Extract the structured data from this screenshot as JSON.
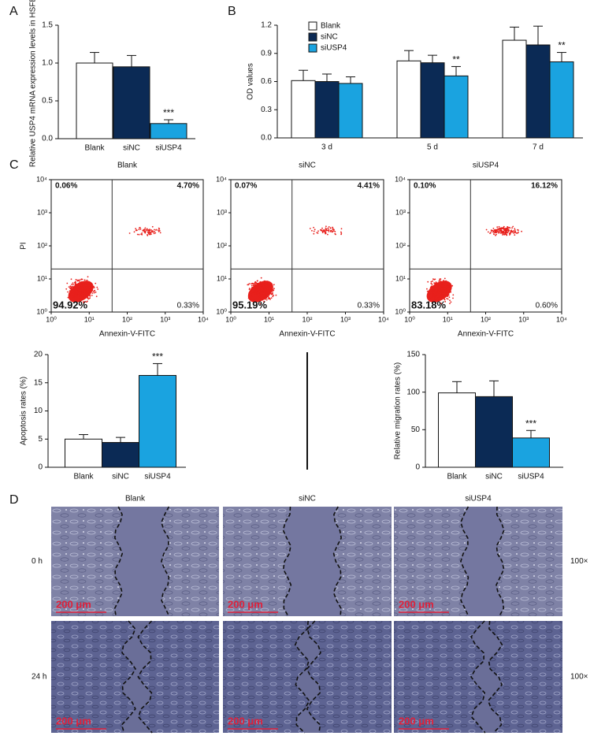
{
  "chart_data": [
    {
      "type": "bar",
      "panel": "A",
      "ylabel": "Relative USP4 mRNA expression levels in HSFB",
      "categories": [
        "Blank",
        "siNC",
        "siUSP4"
      ],
      "values": [
        1.0,
        0.95,
        0.2
      ],
      "errors": [
        0.14,
        0.15,
        0.05
      ],
      "colors": [
        "#ffffff",
        "#0b2a55",
        "#1aa3e0"
      ],
      "annotations": [
        null,
        null,
        "***"
      ],
      "ylim": [
        0,
        1.5
      ],
      "yticks": [
        {
          "value": 0,
          "label": "0.0"
        },
        0.5,
        {
          "value": 1,
          "label": "1.0"
        },
        1.5
      ]
    },
    {
      "type": "bar",
      "panel": "B",
      "ylabel": "OD values",
      "categories": [
        "3 d",
        "5 d",
        "7 d"
      ],
      "series": [
        {
          "name": "Blank",
          "color": "#ffffff",
          "values": [
            0.61,
            0.82,
            1.04
          ],
          "errors": [
            0.11,
            0.11,
            0.14
          ]
        },
        {
          "name": "siNC",
          "color": "#0b2a55",
          "values": [
            0.6,
            0.8,
            0.99
          ],
          "errors": [
            0.08,
            0.08,
            0.2
          ]
        },
        {
          "name": "siUSP4",
          "color": "#1aa3e0",
          "values": [
            0.58,
            0.66,
            0.81
          ],
          "errors": [
            0.07,
            0.1,
            0.1
          ],
          "annotations": [
            null,
            "**",
            "**"
          ]
        }
      ],
      "ylim": [
        0,
        1.2
      ],
      "yticks": [
        {
          "value": 0,
          "label": "0.0"
        },
        0.3,
        0.6,
        0.9,
        1.2
      ],
      "legend": "upper left"
    },
    {
      "type": "scatter",
      "panel": "C",
      "title": "Blank",
      "xlabel": "Annexin-V-FITC",
      "ylabel": "PI",
      "xscale": "log",
      "yscale": "log",
      "xlim": [
        1,
        10000
      ],
      "ylim": [
        1,
        10000
      ],
      "xticks": [
        {
          "value": 1,
          "label": "10⁰"
        },
        {
          "value": 10,
          "label": "10¹"
        },
        {
          "value": 100,
          "label": "10²"
        },
        {
          "value": 1000,
          "label": "10³"
        },
        {
          "value": 10000,
          "label": "10⁴"
        }
      ],
      "yticks": [
        {
          "value": 1,
          "label": "10⁰"
        },
        {
          "value": 10,
          "label": "10¹"
        },
        {
          "value": 100,
          "label": "10²"
        },
        {
          "value": 1000,
          "label": "10³"
        },
        {
          "value": 10000,
          "label": "10⁴"
        }
      ],
      "quadrant_gate": [
        40,
        20
      ],
      "color": "#e8201c",
      "quadrants": {
        "upper_left": "0.06%",
        "upper_right": "4.70%",
        "lower_left": "94.92%",
        "lower_right": "0.33%"
      }
    },
    {
      "type": "scatter",
      "title": "siNC",
      "xlabel": "Annexin-V-FITC",
      "xscale": "log",
      "yscale": "log",
      "xlim": [
        1,
        10000
      ],
      "ylim": [
        1,
        10000
      ],
      "xticks": [
        {
          "value": 1,
          "label": "10⁰"
        },
        {
          "value": 10,
          "label": "10¹"
        },
        {
          "value": 100,
          "label": "10²"
        },
        {
          "value": 1000,
          "label": "10³"
        },
        {
          "value": 10000,
          "label": "10⁴"
        }
      ],
      "yticks": [
        {
          "value": 1,
          "label": "10⁰"
        },
        {
          "value": 10,
          "label": "10¹"
        },
        {
          "value": 100,
          "label": "10²"
        },
        {
          "value": 1000,
          "label": "10³"
        },
        {
          "value": 10000,
          "label": "10⁴"
        }
      ],
      "quadrant_gate": [
        40,
        20
      ],
      "color": "#e8201c",
      "quadrants": {
        "upper_left": "0.07%",
        "upper_right": "4.41%",
        "lower_left": "95.19%",
        "lower_right": "0.33%"
      }
    },
    {
      "type": "scatter",
      "title": "siUSP4",
      "xlabel": "Annexin-V-FITC",
      "xscale": "log",
      "yscale": "log",
      "xlim": [
        1,
        10000
      ],
      "ylim": [
        1,
        10000
      ],
      "xticks": [
        {
          "value": 1,
          "label": "10⁰"
        },
        {
          "value": 10,
          "label": "10¹"
        },
        {
          "value": 100,
          "label": "10²"
        },
        {
          "value": 1000,
          "label": "10³"
        },
        {
          "value": 10000,
          "label": "10⁴"
        }
      ],
      "yticks": [
        {
          "value": 1,
          "label": "10⁰"
        },
        {
          "value": 10,
          "label": "10¹"
        },
        {
          "value": 100,
          "label": "10²"
        },
        {
          "value": 1000,
          "label": "10³"
        },
        {
          "value": 10000,
          "label": "10⁴"
        }
      ],
      "quadrant_gate": [
        40,
        20
      ],
      "color": "#e8201c",
      "quadrants": {
        "upper_left": "0.10%",
        "upper_right": "16.12%",
        "lower_left": "83.18%",
        "lower_right": "0.60%"
      }
    },
    {
      "type": "bar",
      "ylabel": "Apoptosis rates (%)",
      "categories": [
        "Blank",
        "siNC",
        "siUSP4"
      ],
      "values": [
        5.0,
        4.4,
        16.3
      ],
      "errors": [
        0.8,
        0.9,
        2.1
      ],
      "colors": [
        "#ffffff",
        "#0b2a55",
        "#1aa3e0"
      ],
      "annotations": [
        null,
        null,
        "***"
      ],
      "ylim": [
        0,
        20
      ],
      "yticks": [
        0,
        5,
        10,
        15,
        20
      ]
    },
    {
      "type": "bar",
      "ylabel": "Relative migration rates (%)",
      "categories": [
        "Blank",
        "siNC",
        "siUSP4"
      ],
      "values": [
        99,
        94,
        39
      ],
      "errors": [
        15,
        21,
        10
      ],
      "colors": [
        "#ffffff",
        "#0b2a55",
        "#1aa3e0"
      ],
      "annotations": [
        null,
        null,
        "***"
      ],
      "ylim": [
        0,
        150
      ],
      "yticks": [
        0,
        50,
        100,
        150
      ]
    }
  ],
  "wound_healing": {
    "panel": "D",
    "columns": [
      "Blank",
      "siNC",
      "siUSP4"
    ],
    "rows": [
      {
        "label": "0 h",
        "magnification": "100×",
        "scale_bars": [
          "200 μm",
          "200 μm",
          "200 μm"
        ]
      },
      {
        "label": "24 h",
        "magnification": "100×",
        "scale_bars": [
          "200 μm",
          "200 μm",
          "200 μm"
        ]
      }
    ]
  }
}
